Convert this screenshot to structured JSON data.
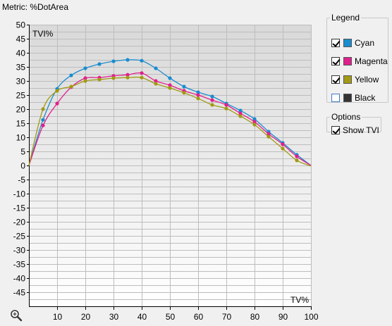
{
  "header": {
    "metric_label": "Metric: %DotArea"
  },
  "legend": {
    "title": "Legend",
    "items": [
      {
        "label": "Cyan",
        "color": "#1a8ccf",
        "checked": true
      },
      {
        "label": "Magenta",
        "color": "#e0208c",
        "checked": true
      },
      {
        "label": "Yellow",
        "color": "#a29a14",
        "checked": true
      },
      {
        "label": "Black",
        "color": "#333333",
        "checked": false
      }
    ]
  },
  "options": {
    "title": "Options",
    "show_tvi_label": "Show TVI",
    "show_tvi_checked": true
  },
  "icons": {
    "zoom": "zoom-magnifier-icon"
  },
  "chart_data": {
    "type": "line",
    "xlabel": "TV%",
    "ylabel": "TVI%",
    "xlim": [
      0,
      100
    ],
    "ylim": [
      -50,
      50
    ],
    "x_ticks": [
      10,
      20,
      30,
      40,
      50,
      60,
      70,
      80,
      90,
      100
    ],
    "y_ticks": [
      50,
      45,
      40,
      35,
      30,
      25,
      20,
      15,
      10,
      5,
      0,
      -5,
      -10,
      -15,
      -20,
      -25,
      -30,
      -35,
      -40,
      -45
    ],
    "grid": true,
    "series": [
      {
        "name": "Cyan",
        "color": "#1a8ccf",
        "x": [
          0,
          5,
          10,
          15,
          20,
          25,
          30,
          35,
          40,
          45,
          50,
          55,
          60,
          65,
          70,
          75,
          80,
          85,
          90,
          95,
          100
        ],
        "y": [
          0,
          16.2,
          27.2,
          32,
          34.5,
          36,
          37,
          37.5,
          37.2,
          34.5,
          31,
          28,
          26,
          24.5,
          22,
          19.5,
          16.5,
          12,
          8,
          3.8,
          0
        ]
      },
      {
        "name": "Magenta",
        "color": "#e0208c",
        "x": [
          0,
          5,
          10,
          15,
          20,
          25,
          30,
          35,
          40,
          45,
          50,
          55,
          60,
          65,
          70,
          75,
          80,
          85,
          90,
          95,
          100
        ],
        "y": [
          0,
          14.2,
          22,
          27.8,
          31,
          31.2,
          31.8,
          32.2,
          32.8,
          30,
          28.5,
          26.5,
          25,
          23.2,
          21.5,
          18.5,
          15.5,
          11.2,
          7.5,
          3.2,
          0
        ]
      },
      {
        "name": "Yellow",
        "color": "#a29a14",
        "x": [
          0,
          5,
          10,
          15,
          20,
          25,
          30,
          35,
          40,
          45,
          50,
          55,
          60,
          65,
          70,
          75,
          80,
          85,
          90,
          95,
          100
        ],
        "y": [
          0,
          20,
          26.5,
          28,
          30,
          30.5,
          31,
          31.2,
          31.2,
          29,
          27.5,
          25.8,
          23.8,
          21.5,
          20.2,
          17.5,
          14.5,
          10.2,
          6,
          1.8,
          -0.2
        ]
      }
    ]
  }
}
